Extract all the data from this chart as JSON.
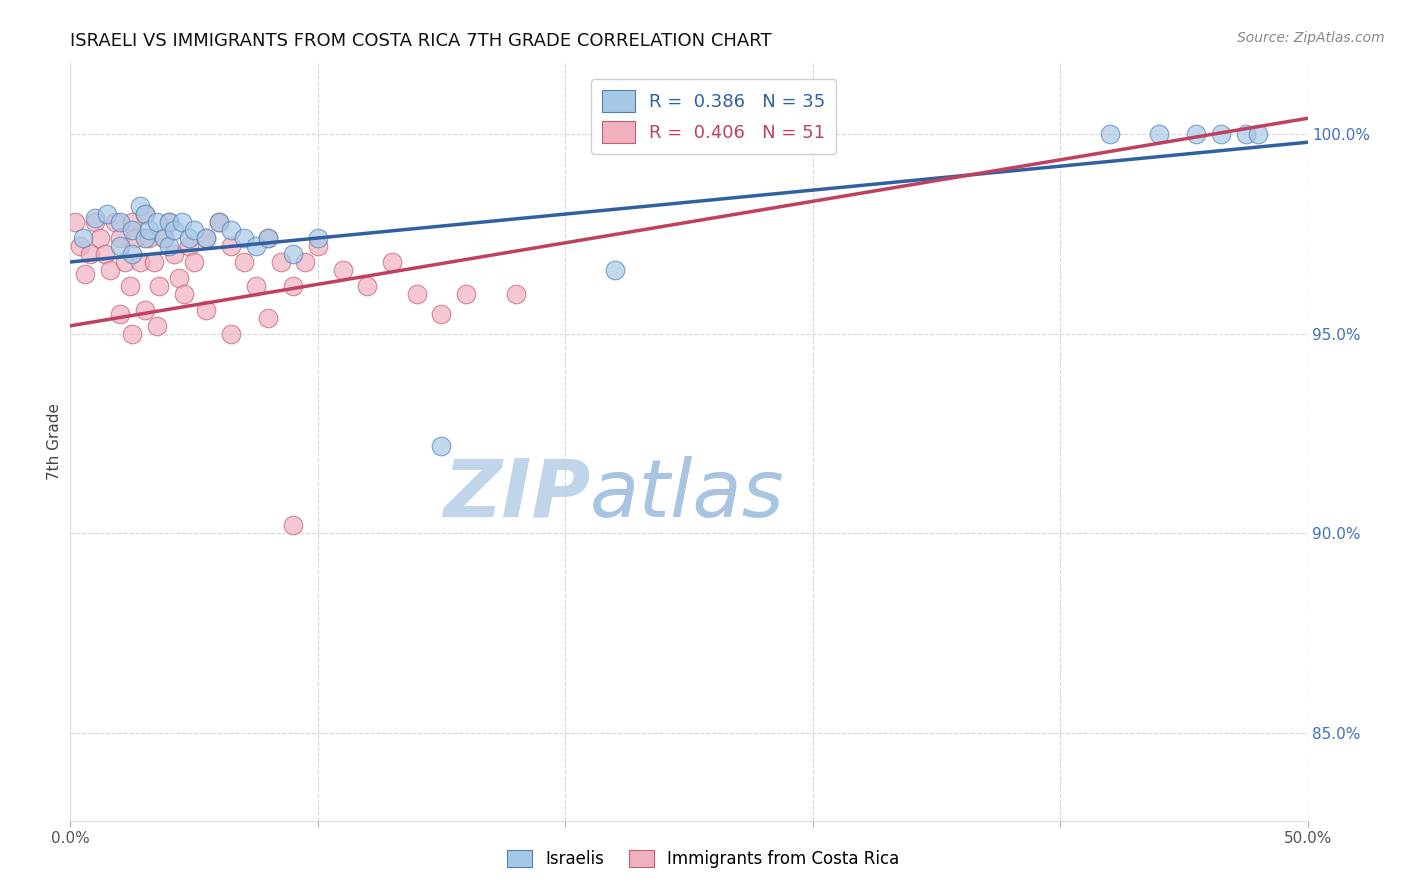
{
  "title": "ISRAELI VS IMMIGRANTS FROM COSTA RICA 7TH GRADE CORRELATION CHART",
  "source_text": "Source: ZipAtlas.com",
  "ylabel": "7th Grade",
  "xlim": [
    0.0,
    0.5
  ],
  "ylim": [
    0.828,
    1.018
  ],
  "xtick_vals": [
    0.0,
    0.1,
    0.2,
    0.3,
    0.4,
    0.5
  ],
  "xtick_labels_edge": [
    "0.0%",
    "",
    "",
    "",
    "",
    "50.0%"
  ],
  "ytick_vals": [
    0.85,
    0.9,
    0.95,
    1.0
  ],
  "ytick_labels": [
    "85.0%",
    "90.0%",
    "95.0%",
    "100.0%"
  ],
  "blue_color": "#a8c8e8",
  "pink_color": "#f0b0c0",
  "blue_edge_color": "#5080b0",
  "pink_edge_color": "#c06070",
  "blue_line_color": "#3060a0",
  "pink_line_color": "#c04060",
  "watermark_zip": "ZIP",
  "watermark_atlas": "atlas",
  "watermark_color_zip": "#c8ddf0",
  "watermark_color_atlas": "#b0c8e0",
  "blue_scatter_x": [
    0.005,
    0.01,
    0.015,
    0.02,
    0.02,
    0.025,
    0.025,
    0.028,
    0.03,
    0.03,
    0.032,
    0.035,
    0.038,
    0.04,
    0.04,
    0.042,
    0.045,
    0.048,
    0.05,
    0.055,
    0.06,
    0.065,
    0.07,
    0.075,
    0.08,
    0.09,
    0.1,
    0.15,
    0.22,
    0.42,
    0.44,
    0.455,
    0.465,
    0.475,
    0.48
  ],
  "blue_scatter_y": [
    0.974,
    0.979,
    0.98,
    0.978,
    0.972,
    0.976,
    0.97,
    0.982,
    0.98,
    0.974,
    0.976,
    0.978,
    0.974,
    0.978,
    0.972,
    0.976,
    0.978,
    0.974,
    0.976,
    0.974,
    0.978,
    0.976,
    0.974,
    0.972,
    0.974,
    0.97,
    0.974,
    0.922,
    0.966,
    1.0,
    1.0,
    1.0,
    1.0,
    1.0,
    1.0
  ],
  "pink_scatter_x": [
    0.002,
    0.004,
    0.006,
    0.008,
    0.01,
    0.012,
    0.014,
    0.016,
    0.018,
    0.02,
    0.022,
    0.024,
    0.025,
    0.026,
    0.028,
    0.03,
    0.032,
    0.034,
    0.036,
    0.038,
    0.04,
    0.042,
    0.044,
    0.046,
    0.048,
    0.05,
    0.055,
    0.06,
    0.065,
    0.07,
    0.075,
    0.08,
    0.085,
    0.09,
    0.095,
    0.1,
    0.11,
    0.12,
    0.13,
    0.14,
    0.15,
    0.16,
    0.18,
    0.02,
    0.025,
    0.03,
    0.035,
    0.055,
    0.065,
    0.08,
    0.09
  ],
  "pink_scatter_y": [
    0.978,
    0.972,
    0.965,
    0.97,
    0.978,
    0.974,
    0.97,
    0.966,
    0.978,
    0.974,
    0.968,
    0.962,
    0.978,
    0.974,
    0.968,
    0.98,
    0.974,
    0.968,
    0.962,
    0.974,
    0.978,
    0.97,
    0.964,
    0.96,
    0.972,
    0.968,
    0.974,
    0.978,
    0.972,
    0.968,
    0.962,
    0.974,
    0.968,
    0.962,
    0.968,
    0.972,
    0.966,
    0.962,
    0.968,
    0.96,
    0.955,
    0.96,
    0.96,
    0.955,
    0.95,
    0.956,
    0.952,
    0.956,
    0.95,
    0.954,
    0.902
  ],
  "blue_trend_x": [
    0.0,
    0.5
  ],
  "blue_trend_y": [
    0.968,
    0.998
  ],
  "pink_trend_x": [
    0.0,
    0.5
  ],
  "pink_trend_y": [
    0.952,
    1.004
  ],
  "background_color": "#ffffff",
  "grid_color": "#cccccc",
  "title_fontsize": 13,
  "axis_label_fontsize": 11,
  "tick_fontsize": 11,
  "source_fontsize": 10,
  "legend_R_blue": "R =  0.386",
  "legend_N_blue": "N = 35",
  "legend_R_pink": "R =  0.406",
  "legend_N_pink": "N = 51"
}
